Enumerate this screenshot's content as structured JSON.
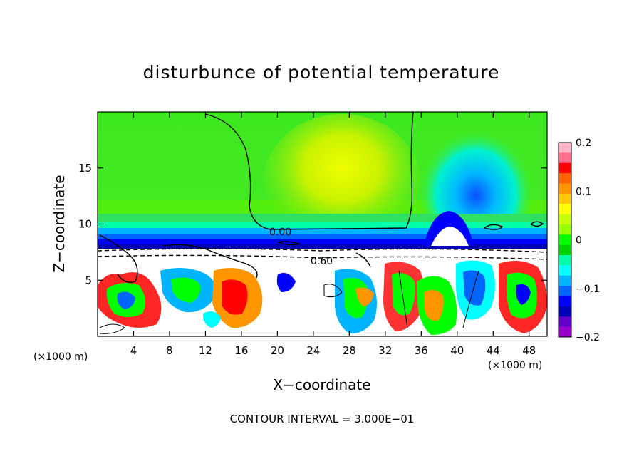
{
  "chart_data": {
    "type": "heatmap",
    "title": "disturbunce of potential temperature",
    "xlabel": "X−coordinate",
    "ylabel": "Z−coordinate",
    "x_unit_left": "(×1000 m)",
    "x_unit_right": "(×1000 m)",
    "xlim": [
      0,
      50
    ],
    "ylim": [
      0,
      20
    ],
    "x_ticks": [
      4,
      8,
      12,
      16,
      20,
      24,
      28,
      32,
      36,
      40,
      44,
      48
    ],
    "y_ticks": [
      5,
      10,
      15
    ],
    "colorbar": {
      "range": [
        -0.2,
        0.2
      ],
      "ticks": [
        "0.2",
        "0.1",
        "0",
        "−0.1",
        "−0.2"
      ],
      "tick_values": [
        0.2,
        0.1,
        0,
        -0.1,
        -0.2
      ],
      "colors_top_to_bottom": [
        "#ffb4c8",
        "#ff6e8c",
        "#ff0000",
        "#ff6400",
        "#ff9600",
        "#ffc800",
        "#ffff00",
        "#c8ff00",
        "#96ff00",
        "#00ff00",
        "#00d200",
        "#00ffaa",
        "#00ffff",
        "#00b4ff",
        "#0064ff",
        "#0000ff",
        "#0000b4",
        "#6400c8",
        "#9600c8"
      ]
    },
    "contour_labels": [
      "0.00",
      "0.60"
    ],
    "contour_interval_text": "CONTOUR INTERVAL = 3.000E−01"
  }
}
